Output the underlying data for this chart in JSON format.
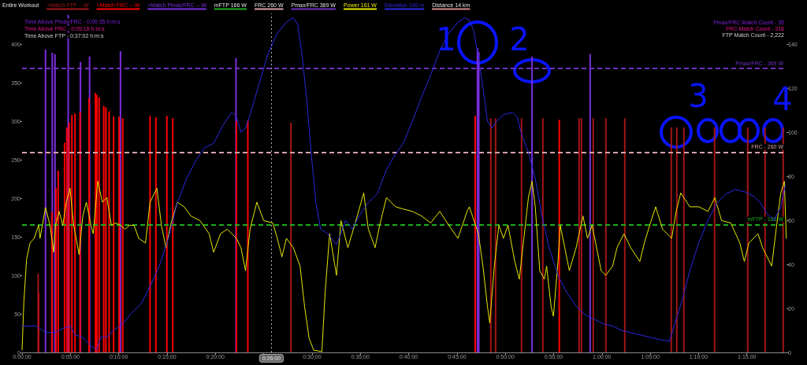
{
  "chart_data": {
    "type": "line",
    "title": "Entire Workout",
    "xlim": [
      0,
      1.3183
    ],
    "xticks": [
      {
        "value": 0,
        "label": "0:00:00"
      },
      {
        "value": 0.08333,
        "label": "0:05:00"
      },
      {
        "value": 0.16667,
        "label": "0:10:00"
      },
      {
        "value": 0.25,
        "label": "0:15:00"
      },
      {
        "value": 0.33333,
        "label": "0:20:00"
      },
      {
        "value": 0.41667,
        "label": null
      },
      {
        "value": 0.5,
        "label": "0:30:00"
      },
      {
        "value": 0.58333,
        "label": "0:35:00"
      },
      {
        "value": 0.66667,
        "label": "0:40:00"
      },
      {
        "value": 0.75,
        "label": "0:45:00"
      },
      {
        "value": 0.83333,
        "label": "0:50:00"
      },
      {
        "value": 0.91667,
        "label": "0:55:00"
      },
      {
        "value": 1,
        "label": "1:00:00"
      },
      {
        "value": 1.08333,
        "label": "1:05:00"
      },
      {
        "value": 1.16667,
        "label": "1:10:00"
      },
      {
        "value": 1.25,
        "label": "1:15:00"
      }
    ],
    "ylim": [
      0,
      440
    ],
    "yticks": [
      0,
      50,
      100,
      150,
      200,
      250,
      300,
      350,
      400
    ],
    "y2lim": [
      0,
      154
    ],
    "y2ticks": [
      0,
      20,
      40,
      60,
      80,
      100,
      120,
      140
    ],
    "legend": "top",
    "series": [
      {
        "name": ">Match FTP -- W",
        "type": "bar",
        "color": "#a31515",
        "x": [
          0.0278,
          0.4637,
          0.8084,
          0.8166,
          0.8614,
          0.8981,
          0.9606,
          0.9647,
          0.985,
          1.0068,
          1.0394,
          1.1196,
          1.1291,
          1.1413,
          1.1943,
          1.2514,
          1.2813,
          1.3125
        ],
        "values": [
          102,
          298,
          304,
          304,
          304,
          304,
          304,
          304,
          304,
          304,
          304,
          292,
          292,
          292,
          292,
          292,
          292,
          292
        ]
      },
      {
        "name": ">Match FRC -- W",
        "type": "bar",
        "color": "#ff0000",
        "x": [
          0.0285,
          0.0514,
          0.0584,
          0.0623,
          0.0733,
          0.0772,
          0.0811,
          0.0859,
          0.0913,
          0.1,
          0.1156,
          0.1266,
          0.129,
          0.1329,
          0.1408,
          0.1446,
          0.1501,
          0.1579,
          0.1674,
          0.1736,
          0.2207,
          0.2308,
          0.2497,
          0.2599,
          0.3697,
          0.3893,
          0.7814,
          0.9264
        ],
        "values": [
          77,
          182,
          213,
          236,
          272,
          292,
          298,
          308,
          310,
          312,
          330,
          337,
          334,
          331,
          320,
          318,
          313,
          306,
          306,
          304,
          307,
          305,
          307,
          304,
          300,
          301,
          307,
          302
        ]
      },
      {
        "name": ">Match Pmax/FRC -- W",
        "type": "bar",
        "color": "#7a2ee0",
        "x": [
          0.0404,
          0.0521,
          0.0568,
          0.0796,
          0.1007,
          0.1164,
          0.1697,
          0.3689,
          0.7853,
          0.7876,
          0.8795,
          0.9796
        ],
        "values": [
          393,
          389,
          387,
          438,
          377,
          384,
          391,
          382,
          395,
          390,
          384,
          387
        ]
      },
      {
        "name": "Power 161 W",
        "color": "#e6e600",
        "x": [
          0,
          0.0031,
          0.0078,
          0.0137,
          0.0208,
          0.0286,
          0.031,
          0.0404,
          0.0482,
          0.0545,
          0.0576,
          0.0639,
          0.0702,
          0.0764,
          0.0827,
          0.089,
          0.0984,
          0.1047,
          0.1109,
          0.1188,
          0.1227,
          0.1305,
          0.1384,
          0.1462,
          0.154,
          0.1619,
          0.1697,
          0.1776,
          0.1854,
          0.1932,
          0.2011,
          0.2129,
          0.2207,
          0.2325,
          0.2403,
          0.2481,
          0.256,
          0.2677,
          0.2795,
          0.2912,
          0.3069,
          0.3226,
          0.3304,
          0.3422,
          0.354,
          0.3618,
          0.3697,
          0.3775,
          0.3853,
          0.3932,
          0.4049,
          0.4167,
          0.4324,
          0.4402,
          0.4481,
          0.4559,
          0.4677,
          0.4794,
          0.4873,
          0.4951,
          0.5029,
          0.5171,
          0.5226,
          0.5304,
          0.5422,
          0.55,
          0.5618,
          0.5735,
          0.5892,
          0.5971,
          0.6088,
          0.6167,
          0.6284,
          0.6441,
          0.6576,
          0.6733,
          0.689,
          0.7046,
          0.7203,
          0.736,
          0.7517,
          0.7674,
          0.7713,
          0.787,
          0.7948,
          0.8027,
          0.8066,
          0.8144,
          0.8223,
          0.8301,
          0.838,
          0.8497,
          0.8575,
          0.8654,
          0.8732,
          0.8795,
          0.885,
          0.8928,
          0.9007,
          0.9046,
          0.9124,
          0.9163,
          0.9242,
          0.9281,
          0.9359,
          0.9438,
          0.9555,
          0.9673,
          0.9751,
          0.983,
          0.9987,
          1.0065,
          1.0183,
          1.0261,
          1.0379,
          1.0496,
          1.0653,
          1.0731,
          1.0849,
          1.0927,
          1.1045,
          1.1202,
          1.128,
          1.1359,
          1.1515,
          1.1672,
          1.1829,
          1.1947,
          1.2064,
          1.2221,
          1.2378,
          1.2456,
          1.2535,
          1.2692,
          1.277,
          1.2927,
          1.3005,
          1.3084,
          1.3146,
          1.3179
        ],
        "values": [
          3,
          65,
          121,
          142,
          148,
          165,
          148,
          188,
          165,
          130,
          165,
          183,
          165,
          195,
          213,
          165,
          127,
          177,
          195,
          165,
          154,
          222,
          195,
          201,
          165,
          168,
          165,
          160,
          165,
          165,
          148,
          142,
          195,
          213,
          165,
          136,
          165,
          195,
          189,
          177,
          171,
          154,
          130,
          154,
          160,
          154,
          148,
          136,
          106,
          160,
          195,
          171,
          168,
          148,
          124,
          148,
          136,
          112,
          59,
          18,
          3,
          1,
          77,
          154,
          100,
          171,
          136,
          165,
          207,
          160,
          136,
          165,
          201,
          189,
          186,
          183,
          177,
          168,
          183,
          165,
          148,
          183,
          189,
          154,
          112,
          59,
          38,
          112,
          165,
          148,
          165,
          118,
          95,
          148,
          201,
          222,
          189,
          106,
          95,
          112,
          59,
          47,
          118,
          165,
          136,
          106,
          136,
          177,
          148,
          165,
          106,
          100,
          112,
          136,
          154,
          136,
          118,
          142,
          171,
          189,
          160,
          148,
          183,
          207,
          189,
          189,
          183,
          201,
          171,
          168,
          142,
          118,
          142,
          154,
          136,
          112,
          160,
          207,
          222,
          148
        ]
      },
      {
        "name": "Elevation 140 m",
        "axis": "y2",
        "color": "#2a2ae0",
        "x": [
          0,
          0.0247,
          0.0404,
          0.056,
          0.0717,
          0.0834,
          0.0913,
          0.1031,
          0.1188,
          0.1281,
          0.136,
          0.1462,
          0.158,
          0.1736,
          0.1893,
          0.205,
          0.2207,
          0.2364,
          0.2524,
          0.2677,
          0.2838,
          0.2995,
          0.3148,
          0.3304,
          0.3461,
          0.3618,
          0.3697,
          0.3775,
          0.3853,
          0.3932,
          0.4088,
          0.4246,
          0.4402,
          0.4558,
          0.4677,
          0.4754,
          0.4833,
          0.4912,
          0.4991,
          0.5068,
          0.5147,
          0.5265,
          0.5421,
          0.55,
          0.5577,
          0.5696,
          0.5814,
          0.597,
          0.6126,
          0.6284,
          0.644,
          0.6573,
          0.6732,
          0.6889,
          0.7046,
          0.7204,
          0.736,
          0.7516,
          0.7635,
          0.7713,
          0.7791,
          0.787,
          0.7948,
          0.8027,
          0.8105,
          0.8183,
          0.8302,
          0.8458,
          0.8537,
          0.8614,
          0.8732,
          0.8849,
          0.8967,
          0.9085,
          0.9242,
          0.9398,
          0.9556,
          0.9712,
          0.9869,
          1.0026,
          1.0182,
          1.034,
          1.0496,
          1.0654,
          1.081,
          1.0966,
          1.1163,
          1.128,
          1.1398,
          1.1515,
          1.1672,
          1.1829,
          1.1987,
          1.2143,
          1.2299,
          1.2457,
          1.2613,
          1.2731,
          1.2848,
          1.2966,
          1.3084,
          1.3162
        ],
        "values": [
          12,
          12,
          9,
          9,
          11,
          12,
          8,
          7,
          3,
          1,
          7,
          7,
          10,
          13,
          18,
          22,
          30,
          39,
          52,
          68,
          79,
          87,
          93,
          95,
          103,
          109,
          107,
          100,
          102,
          108,
          122,
          136,
          145,
          150,
          152,
          149,
          134,
          114,
          89,
          68,
          56,
          54,
          49,
          54,
          60,
          56,
          62,
          68,
          72,
          83,
          90,
          95,
          105,
          116,
          126,
          137,
          145,
          150,
          152,
          151,
          146,
          134,
          120,
          105,
          102,
          105,
          108,
          109,
          107,
          99,
          91,
          79,
          62,
          48,
          35,
          27,
          21,
          17,
          15,
          13,
          12,
          10,
          9,
          8,
          7,
          6,
          5,
          15,
          25,
          37,
          50,
          60,
          68,
          72,
          74,
          73,
          71,
          68,
          63,
          60,
          66,
          76
        ]
      }
    ],
    "ref_lines": [
      {
        "axis": "y",
        "value": 166,
        "label": "mFTP - 166 W",
        "color": "#1fae1f",
        "line_style": "dashed"
      },
      {
        "axis": "y",
        "value": 260,
        "label": "FRC - 260 W",
        "color": "#d8a0a8",
        "line_style": "dashed"
      },
      {
        "axis": "y",
        "value": 369,
        "label": "Pmax/FRC - 369 W",
        "color": "#7030c0",
        "line_style": "dashed"
      },
      {
        "axis": "x",
        "value": 0.43333,
        "label": "0:26:00",
        "color": "#b0b0b0",
        "line_style": "dotted"
      }
    ],
    "annotations": [
      "mFTP 166 W",
      "FRC 260 W",
      "Pmax/FRC 369 W",
      "Distance 14 km",
      "Time Above Pmax/FRC - 0:00:35 h:m:s",
      "Time Above FRC - 0:05:18 h:m:s",
      "Time Above FTP - 0:37:02 h:m:s",
      "Pmax/FRC Match Count - 35",
      "FRC Match Count - 318",
      "FTP Match Count - 2,222",
      "1",
      "2",
      "3",
      "4"
    ]
  }
}
